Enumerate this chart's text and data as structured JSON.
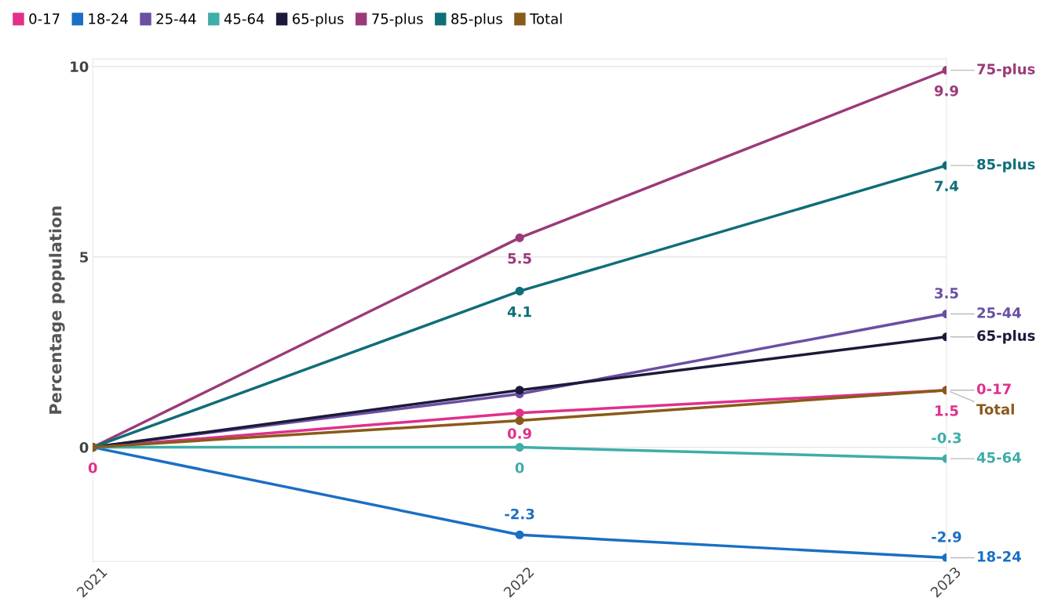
{
  "chart_data": {
    "type": "line",
    "ylabel": "Percentage population",
    "categories": [
      "2021",
      "2022",
      "2023"
    ],
    "series": [
      {
        "name": "0-17",
        "color": "#e0308a",
        "values": [
          0,
          0.9,
          1.5
        ],
        "value_labels": [
          "0",
          "0.9",
          "1.5"
        ]
      },
      {
        "name": "18-24",
        "color": "#1a6fc4",
        "values": [
          0,
          -2.3,
          -2.9
        ],
        "value_labels": [
          null,
          "-2.3",
          "-2.9"
        ]
      },
      {
        "name": "25-44",
        "color": "#6a4fa3",
        "values": [
          0,
          1.4,
          3.5
        ],
        "value_labels": [
          null,
          null,
          "3.5"
        ]
      },
      {
        "name": "45-64",
        "color": "#3fada8",
        "values": [
          0,
          0,
          -0.3
        ],
        "value_labels": [
          null,
          "0",
          "-0.3"
        ]
      },
      {
        "name": "65-plus",
        "color": "#1c1a3a",
        "values": [
          0,
          1.5,
          2.9
        ]
      },
      {
        "name": "75-plus",
        "color": "#9b3a78",
        "values": [
          0,
          5.5,
          9.9
        ],
        "value_labels": [
          null,
          "5.5",
          "9.9"
        ]
      },
      {
        "name": "85-plus",
        "color": "#0f6e78",
        "values": [
          0,
          4.1,
          7.4
        ],
        "value_labels": [
          null,
          "4.1",
          "7.4"
        ]
      },
      {
        "name": "Total",
        "color": "#8a5a1a",
        "values": [
          0,
          0.7,
          1.5
        ]
      }
    ],
    "ylim": [
      -3,
      10.2
    ],
    "yticks": [
      0,
      5,
      10
    ],
    "grid": "y",
    "legend": "top left",
    "marker": "circle",
    "line_style": "solid"
  }
}
